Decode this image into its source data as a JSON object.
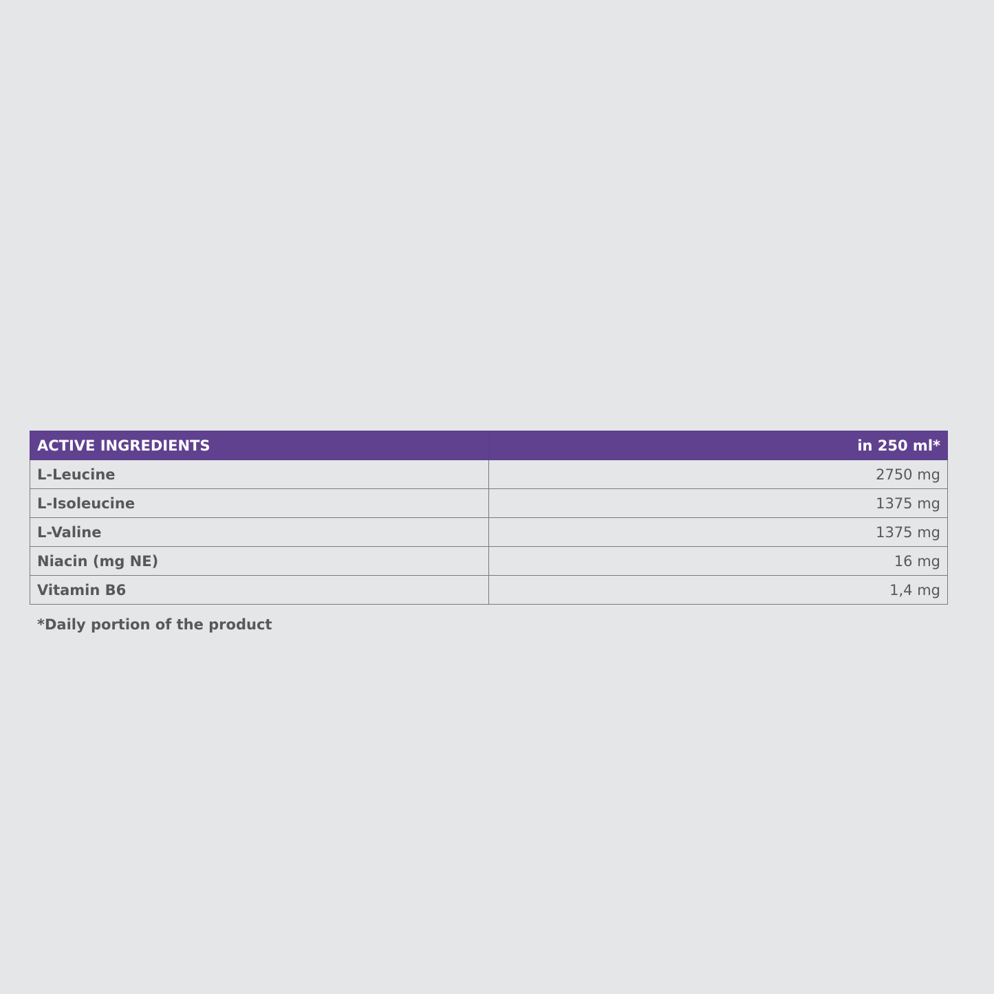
{
  "table": {
    "header": [
      "ACTIVE INGREDIENTS",
      "in 250 ml*"
    ],
    "rows": [
      [
        "L-Leucine",
        "2750 mg"
      ],
      [
        "L-Isoleucine",
        "1375 mg"
      ],
      [
        "L-Valine",
        "1375 mg"
      ],
      [
        "Niacin (mg NE)",
        "16 mg"
      ],
      [
        "Vitamin B6",
        "1,4 mg"
      ]
    ]
  },
  "footnote": "*Daily portion of the product"
}
